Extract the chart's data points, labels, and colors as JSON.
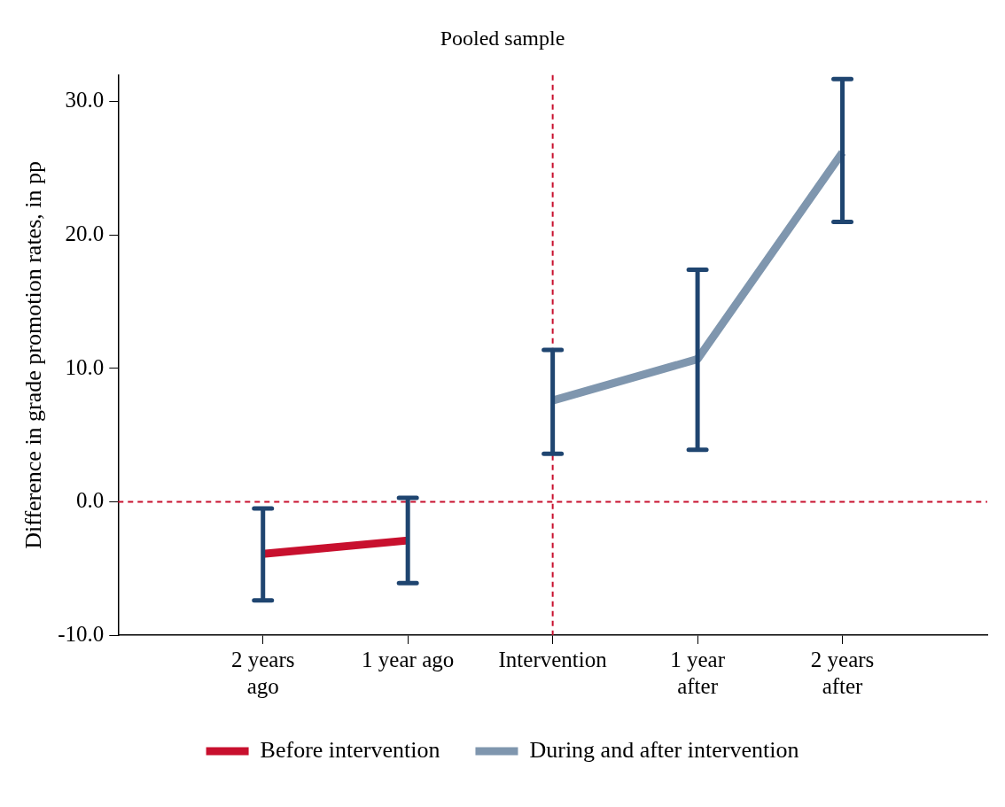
{
  "chart_data": {
    "type": "line",
    "title": "Pooled sample",
    "ylabel": "Difference in grade promotion rates, in pp",
    "categories": [
      null,
      "2 years ago",
      "1 year ago",
      "Intervention",
      "1 year after",
      "2 years after",
      null
    ],
    "series": [
      {
        "name": "Before intervention",
        "color": "#c8102e",
        "values": [
          null,
          -3.9,
          -2.9,
          null,
          null,
          null,
          null
        ],
        "errors": [
          null,
          [
            -7.4,
            -0.5
          ],
          [
            -6.1,
            0.3
          ],
          null,
          null,
          null,
          null
        ]
      },
      {
        "name": "During and after intervention",
        "color": "#7f96ae",
        "values": [
          null,
          null,
          null,
          7.6,
          10.7,
          26.2,
          null
        ],
        "errors": [
          null,
          null,
          null,
          [
            3.6,
            11.4
          ],
          [
            3.9,
            17.4
          ],
          [
            21.0,
            31.7
          ],
          null
        ]
      }
    ],
    "ylim": [
      -10,
      32
    ],
    "yticks": [
      {
        "value": -10,
        "label": "-10.0"
      },
      {
        "value": 0,
        "label": "0.0"
      },
      {
        "value": 10,
        "label": "10.0"
      },
      {
        "value": 20,
        "label": "20.0"
      },
      {
        "value": 30,
        "label": "30.0"
      }
    ],
    "ref_lines": [
      {
        "axis": "y",
        "value": 0,
        "color": "#c8102e",
        "line_style": "dashed"
      },
      {
        "axis": "x",
        "value": "Intervention",
        "color": "#c8102e",
        "line_style": "dashed"
      }
    ],
    "grid": false,
    "legend": "bottom",
    "marker": "none"
  }
}
